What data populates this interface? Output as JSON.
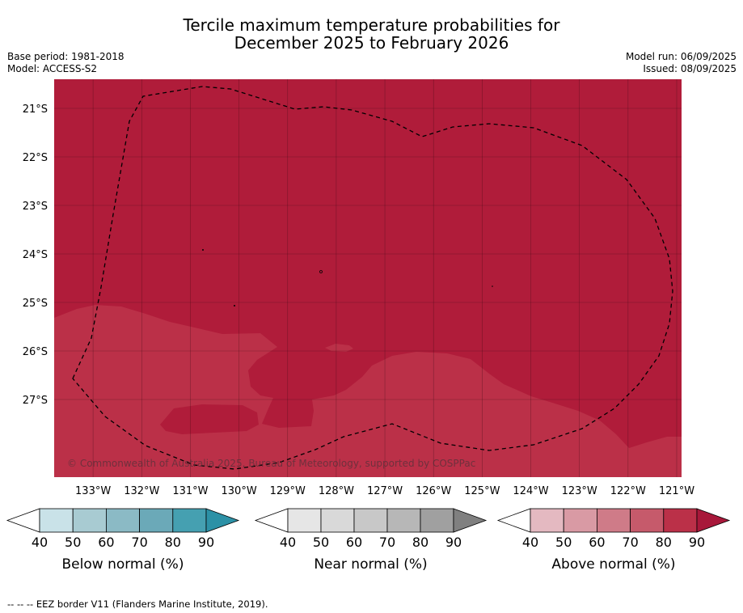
{
  "header": {
    "title_line1": "Tercile maximum temperature probabilities for",
    "title_line2": "December 2025 to February 2026",
    "base_period": "Base period: 1981-2018",
    "model": "Model: ACCESS-S2",
    "model_run": "Model run: 06/09/2025",
    "issued": "Issued: 08/09/2025"
  },
  "chart_data": {
    "type": "heatmap",
    "title": "Tercile maximum temperature probabilities for December 2025 to February 2026",
    "x_ticks": [
      "133°W",
      "132°W",
      "131°W",
      "130°W",
      "129°W",
      "128°W",
      "127°W",
      "126°W",
      "125°W",
      "124°W",
      "123°W",
      "122°W",
      "121°W"
    ],
    "y_ticks": [
      "21°S",
      "22°S",
      "23°S",
      "24°S",
      "25°S",
      "26°S",
      "27°S"
    ],
    "xlim": [
      -133.8,
      -120.9
    ],
    "ylim": [
      -28.6,
      -20.4
    ],
    "grid": true,
    "dominant_category": "Above normal",
    "regions": [
      {
        "category": "Above normal",
        "range_percent": "90+",
        "color": "#b01c3a",
        "area": "north and east"
      },
      {
        "category": "Above normal",
        "range_percent": "80-90",
        "color": "#bb3048",
        "area": "south-west"
      }
    ],
    "colorbars": [
      {
        "name": "Below normal (%)",
        "ticks": [
          "40",
          "50",
          "60",
          "70",
          "80",
          "90"
        ],
        "colors": [
          "#c9e2e8",
          "#a8cbd2",
          "#8bbac5",
          "#6ba9b8",
          "#45a0b1",
          "#2c91a6"
        ]
      },
      {
        "name": "Near normal (%)",
        "ticks": [
          "40",
          "50",
          "60",
          "70",
          "80",
          "90"
        ],
        "colors": [
          "#e6e6e6",
          "#d9d9d9",
          "#c8c8c8",
          "#b7b7b7",
          "#a0a0a0",
          "#808080"
        ]
      },
      {
        "name": "Above normal (%)",
        "ticks": [
          "40",
          "50",
          "60",
          "70",
          "80",
          "90"
        ],
        "colors": [
          "#e4b9c1",
          "#d99aa4",
          "#cf7b88",
          "#c65a6b",
          "#bb3048",
          "#a8183a"
        ]
      }
    ],
    "copyright": "© Commonwealth of Australia 2025, Bureau of Meteorology, supported by COSPPac"
  },
  "footer": {
    "eez_note": "--  --  -- EEZ border V11 (Flanders Marine Institute, 2019)."
  }
}
